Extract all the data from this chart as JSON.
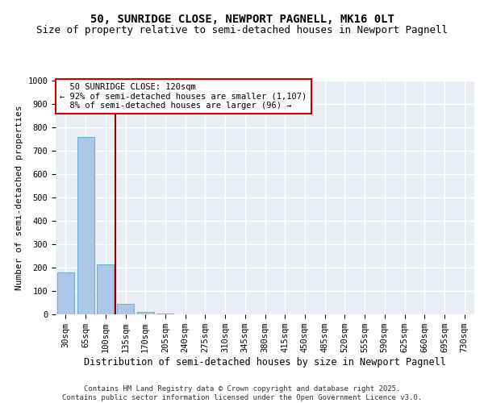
{
  "title1": "50, SUNRIDGE CLOSE, NEWPORT PAGNELL, MK16 0LT",
  "title2": "Size of property relative to semi-detached houses in Newport Pagnell",
  "xlabel": "Distribution of semi-detached houses by size in Newport Pagnell",
  "ylabel": "Number of semi-detached properties",
  "categories": [
    "30sqm",
    "65sqm",
    "100sqm",
    "135sqm",
    "170sqm",
    "205sqm",
    "240sqm",
    "275sqm",
    "310sqm",
    "345sqm",
    "380sqm",
    "415sqm",
    "450sqm",
    "485sqm",
    "520sqm",
    "555sqm",
    "590sqm",
    "625sqm",
    "660sqm",
    "695sqm",
    "730sqm"
  ],
  "values": [
    180,
    760,
    215,
    45,
    10,
    2,
    0,
    0,
    0,
    0,
    0,
    0,
    0,
    0,
    0,
    0,
    0,
    0,
    0,
    0,
    0
  ],
  "bar_color": "#aec6e8",
  "bar_edge_color": "#6aaad4",
  "vline_x": 2.5,
  "vline_color": "#8b0000",
  "annotation_text": "  50 SUNRIDGE CLOSE: 120sqm\n← 92% of semi-detached houses are smaller (1,107)\n  8% of semi-detached houses are larger (96) →",
  "annotation_box_color": "#ffffff",
  "annotation_edge_color": "#cc0000",
  "ylim": [
    0,
    1000
  ],
  "yticks": [
    0,
    100,
    200,
    300,
    400,
    500,
    600,
    700,
    800,
    900,
    1000
  ],
  "background_color": "#e8eef4",
  "grid_color": "#ffffff",
  "footer": "Contains HM Land Registry data © Crown copyright and database right 2025.\nContains public sector information licensed under the Open Government Licence v3.0.",
  "title1_fontsize": 10,
  "title2_fontsize": 9,
  "xlabel_fontsize": 8.5,
  "ylabel_fontsize": 8,
  "tick_fontsize": 7.5,
  "footer_fontsize": 6.5,
  "annot_fontsize": 7.5
}
